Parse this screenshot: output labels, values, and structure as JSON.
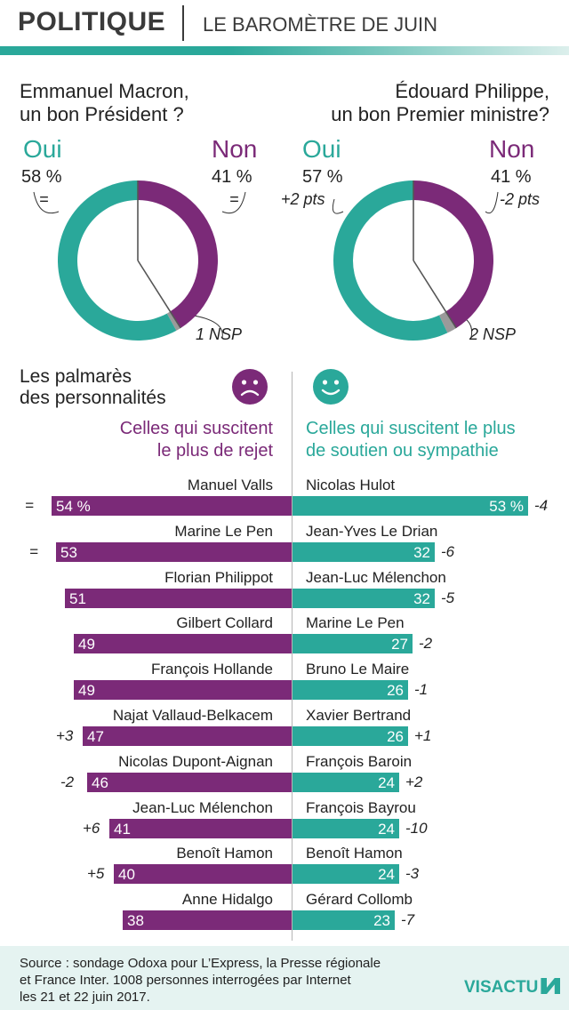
{
  "header": {
    "title": "POLITIQUE",
    "subtitle": "LE BAROMÈTRE DE JUIN"
  },
  "donuts": [
    {
      "question_l1": "Emmanuel Macron,",
      "question_l2": "un bon Président ?",
      "oui_label": "Oui",
      "non_label": "Non",
      "oui_pct": "58 %",
      "non_pct": "41 %",
      "oui_change": "=",
      "non_change": "=",
      "nsp": "1 NSP"
    },
    {
      "question_l1": "Édouard Philippe,",
      "question_l2": "un bon Premier ministre?",
      "oui_label": "Oui",
      "non_label": "Non",
      "oui_pct": "57 %",
      "non_pct": "41 %",
      "oui_change": "+2 pts",
      "non_change": "-2 pts",
      "nsp": "2 NSP"
    }
  ],
  "palmares": {
    "title_l1": "Les palmarès",
    "title_l2": "des personnalités",
    "neg_title_l1": "Celles qui suscitent",
    "neg_title_l2": "le plus de rejet",
    "pos_title_l1": "Celles qui suscitent le plus",
    "pos_title_l2": "de soutien ou sympathie"
  },
  "footer": {
    "source_l1": "Source : sondage Odoxa pour L’Express, la Presse régionale",
    "source_l2": "et France Inter. 1008 personnes interrogées par Internet",
    "source_l3": "les 21 et 22 juin 2017.",
    "logo": "VISACTU"
  },
  "colors": {
    "oui": "#2aa89a",
    "non": "#7b2a78",
    "nsp": "#9a9a9a",
    "footer_bg": "#e5f3f1"
  },
  "icons": {
    "rejection": "sad-face-icon",
    "support": "smile-face-icon"
  },
  "chart_data": [
    {
      "type": "pie",
      "title": "Emmanuel Macron, un bon Président ?",
      "categories": [
        "Oui",
        "Non",
        "NSP"
      ],
      "values": [
        58,
        41,
        1
      ]
    },
    {
      "type": "pie",
      "title": "Édouard Philippe, un bon Premier ministre?",
      "categories": [
        "Oui",
        "Non",
        "NSP"
      ],
      "values": [
        57,
        41,
        2
      ]
    },
    {
      "type": "bar",
      "title": "Celles qui suscitent le plus de rejet",
      "categories": [
        "Manuel Valls",
        "Marine Le Pen",
        "Florian Philippot",
        "Gilbert Collard",
        "François Hollande",
        "Najat Vallaud-Belkacem",
        "Nicolas Dupont-Aignan",
        "Jean-Luc Mélenchon",
        "Benoît Hamon",
        "Anne Hidalgo"
      ],
      "values": [
        54,
        53,
        51,
        49,
        49,
        47,
        46,
        41,
        40,
        38
      ],
      "labels": [
        "54 %",
        "53",
        "51",
        "49",
        "49",
        "47",
        "46",
        "41",
        "40",
        "38"
      ],
      "changes": [
        "=",
        "=",
        "",
        "",
        "",
        "+3",
        "-2",
        "+6",
        "+5",
        ""
      ]
    },
    {
      "type": "bar",
      "title": "Celles qui suscitent le plus de soutien ou sympathie",
      "categories": [
        "Nicolas Hulot",
        "Jean-Yves Le Drian",
        "Jean-Luc Mélenchon",
        "Marine Le Pen",
        "Bruno Le Maire",
        "Xavier Bertrand",
        "François Baroin",
        "François Bayrou",
        "Benoît Hamon",
        "Gérard Collomb"
      ],
      "values": [
        53,
        32,
        32,
        27,
        26,
        26,
        24,
        24,
        24,
        23
      ],
      "labels": [
        "53 %",
        "32",
        "32",
        "27",
        "26",
        "26",
        "24",
        "24",
        "24",
        "23"
      ],
      "changes": [
        "-4",
        "-6",
        "-5",
        "-2",
        "-1",
        "+1",
        "+2",
        "-10",
        "-3",
        "-7"
      ]
    }
  ]
}
